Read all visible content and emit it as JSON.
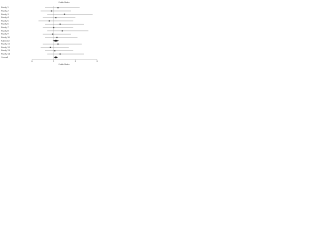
{
  "chart_data": {
    "type": "forest",
    "title": "Odds Ratio",
    "xlabel": "Odds Ratio",
    "categories": [
      "Study 1",
      "Study 2",
      "Study 3",
      "Study 4",
      "Study 5",
      "Study 6",
      "Study 7",
      "Study 8",
      "Study 9",
      "Study 10",
      "Subtotal",
      "Study 11",
      "Study 12",
      "Study 13",
      "Study 14",
      "Overall"
    ],
    "values": [
      1.2,
      0.9,
      1.5,
      1.1,
      0.8,
      1.3,
      1.0,
      1.4,
      0.95,
      1.15,
      1.1,
      1.2,
      0.85,
      1.05,
      1.3,
      1.1
    ],
    "lower": [
      0.6,
      0.4,
      0.7,
      0.5,
      0.3,
      0.6,
      0.5,
      0.7,
      0.5,
      0.6,
      0.95,
      0.5,
      0.4,
      0.6,
      0.7,
      1.0
    ],
    "upper": [
      2.2,
      1.8,
      2.8,
      2.0,
      1.9,
      2.4,
      1.9,
      2.6,
      1.8,
      2.1,
      1.25,
      2.3,
      1.7,
      1.9,
      2.4,
      1.2
    ],
    "summary": [
      false,
      false,
      false,
      false,
      false,
      false,
      false,
      false,
      false,
      false,
      true,
      false,
      false,
      false,
      false,
      true
    ],
    "refline": 1,
    "xlim": [
      0,
      3
    ],
    "xticks": [
      0,
      1,
      2,
      3
    ],
    "color": "#555"
  }
}
